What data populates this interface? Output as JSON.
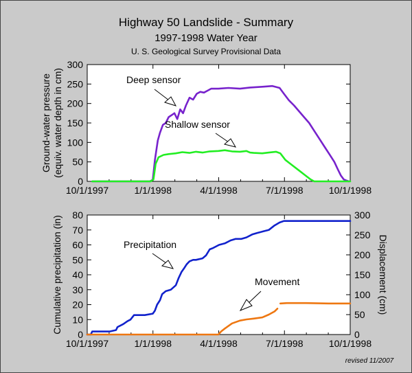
{
  "page": {
    "title": "Highway 50 Landslide - Summary",
    "subtitle": "1997-1998 Water Year",
    "source": "U. S. Geological Survey Provisional Data",
    "revised": "revised 11/2007"
  },
  "colors": {
    "deep": "#7722cc",
    "shallow": "#22ee22",
    "precip": "#1122cc",
    "movement": "#ee7711",
    "plot_bg": "#ffffff"
  },
  "chart_data": [
    {
      "type": "line",
      "xlim": [
        "1997-10-01",
        "1998-10-01"
      ],
      "ylim": [
        0,
        300
      ],
      "ylabel": [
        "Ground-water pressure",
        "(equiv. water depth in cm)"
      ],
      "xticks": [
        "10/1/1997",
        "1/1/1998",
        "4/1/1998",
        "7/1/1998",
        "10/1/1998"
      ],
      "yticks": [
        0,
        50,
        100,
        150,
        200,
        250,
        300
      ],
      "annotations": [
        "Deep sensor",
        "Shallow sensor"
      ],
      "series": [
        {
          "name": "Deep sensor",
          "x": [
            "1997-10-08",
            "1997-12-27",
            "1997-12-31",
            "1998-01-03",
            "1998-01-07",
            "1998-01-10",
            "1998-01-14",
            "1998-01-18",
            "1998-01-22",
            "1998-01-26",
            "1998-01-30",
            "1998-02-03",
            "1998-02-07",
            "1998-02-11",
            "1998-02-15",
            "1998-02-20",
            "1998-02-25",
            "1998-03-02",
            "1998-03-07",
            "1998-03-12",
            "1998-03-17",
            "1998-03-22",
            "1998-04-01",
            "1998-04-15",
            "1998-05-01",
            "1998-05-15",
            "1998-06-01",
            "1998-06-15",
            "1998-06-25",
            "1998-07-01",
            "1998-07-08",
            "1998-07-15",
            "1998-07-22",
            "1998-07-29",
            "1998-08-05",
            "1998-08-12",
            "1998-08-19",
            "1998-08-26",
            "1998-09-02",
            "1998-09-09",
            "1998-09-14",
            "1998-09-18",
            "1998-09-22",
            "1998-09-26",
            "1998-09-29"
          ],
          "y": [
            0,
            0,
            4,
            55,
            105,
            125,
            145,
            150,
            165,
            170,
            175,
            160,
            185,
            175,
            195,
            215,
            210,
            225,
            230,
            228,
            233,
            238,
            238,
            240,
            238,
            241,
            243,
            245,
            240,
            225,
            208,
            195,
            180,
            165,
            150,
            130,
            110,
            90,
            70,
            50,
            30,
            15,
            5,
            2,
            0
          ]
        },
        {
          "name": "Shallow sensor",
          "x": [
            "1997-10-08",
            "1997-12-28",
            "1998-01-01",
            "1998-01-04",
            "1998-01-08",
            "1998-01-15",
            "1998-01-22",
            "1998-02-01",
            "1998-02-10",
            "1998-02-20",
            "1998-03-01",
            "1998-03-10",
            "1998-03-20",
            "1998-04-01",
            "1998-04-10",
            "1998-04-20",
            "1998-05-01",
            "1998-05-10",
            "1998-05-15",
            "1998-05-20",
            "1998-06-01",
            "1998-06-10",
            "1998-06-20",
            "1998-06-26",
            "1998-07-03",
            "1998-07-10",
            "1998-07-17",
            "1998-07-24",
            "1998-07-31",
            "1998-08-07",
            "1998-08-12",
            "1998-10-01"
          ],
          "y": [
            0,
            0,
            5,
            45,
            62,
            68,
            70,
            72,
            75,
            73,
            76,
            74,
            77,
            78,
            80,
            77,
            76,
            78,
            74,
            73,
            72,
            74,
            76,
            72,
            55,
            45,
            35,
            25,
            15,
            5,
            0,
            0
          ]
        }
      ]
    },
    {
      "type": "line",
      "xlim": [
        "1997-10-01",
        "1998-10-01"
      ],
      "ylim_left": [
        0,
        80
      ],
      "ylim_right": [
        0,
        300
      ],
      "ylabel_left": "Cumulative precipitation (in)",
      "ylabel_right": "Displacement (cm)",
      "xticks": [
        "10/1/1997",
        "1/1/1998",
        "4/1/1998",
        "7/1/1998",
        "10/1/1998"
      ],
      "yticks_left": [
        0,
        10,
        20,
        30,
        40,
        50,
        60,
        70,
        80
      ],
      "yticks_right": [
        0,
        50,
        100,
        150,
        200,
        250,
        300
      ],
      "annotations": [
        "Precipitation",
        "Movement"
      ],
      "series": [
        {
          "name": "Precipitation",
          "axis": "left",
          "x": [
            "1997-10-01",
            "1997-10-06",
            "1997-10-08",
            "1997-11-01",
            "1997-11-10",
            "1997-11-12",
            "1997-11-20",
            "1997-11-26",
            "1997-11-30",
            "1997-12-05",
            "1997-12-20",
            "1997-12-31",
            "1998-01-03",
            "1998-01-06",
            "1998-01-10",
            "1998-01-13",
            "1998-01-18",
            "1998-01-25",
            "1998-02-01",
            "1998-02-05",
            "1998-02-09",
            "1998-02-12",
            "1998-02-16",
            "1998-02-20",
            "1998-02-25",
            "1998-03-01",
            "1998-03-10",
            "1998-03-15",
            "1998-03-20",
            "1998-03-25",
            "1998-04-02",
            "1998-04-10",
            "1998-04-18",
            "1998-04-25",
            "1998-05-03",
            "1998-05-10",
            "1998-05-18",
            "1998-05-25",
            "1998-06-02",
            "1998-06-10",
            "1998-06-18",
            "1998-06-25",
            "1998-07-01",
            "1998-10-01"
          ],
          "y": [
            0,
            0,
            2,
            2,
            3,
            5,
            7,
            9,
            10,
            13,
            13,
            14,
            16,
            20,
            23,
            27,
            29,
            30,
            33,
            38,
            42,
            44,
            47,
            49,
            50,
            50,
            51,
            53,
            57,
            58,
            60,
            61,
            63,
            64,
            64,
            65,
            67,
            68,
            69,
            70,
            73,
            75,
            76,
            76
          ]
        },
        {
          "name": "Movement",
          "axis": "right",
          "x": [
            "1997-10-01",
            "1998-04-01",
            "1998-04-05",
            "1998-04-10",
            "1998-04-20",
            "1998-05-01",
            "1998-05-10",
            "1998-05-20",
            "1998-06-01",
            "1998-06-10",
            "1998-06-18",
            "1998-06-22"
          ],
          "y": [
            0,
            0,
            8,
            15,
            28,
            35,
            38,
            40,
            43,
            50,
            58,
            65
          ]
        },
        {
          "name": "Movement",
          "axis": "right",
          "x": [
            "1998-06-26",
            "1998-07-05",
            "1998-08-01",
            "1998-09-01",
            "1998-10-01"
          ],
          "y": [
            78,
            79,
            79,
            78,
            78
          ]
        }
      ]
    }
  ]
}
